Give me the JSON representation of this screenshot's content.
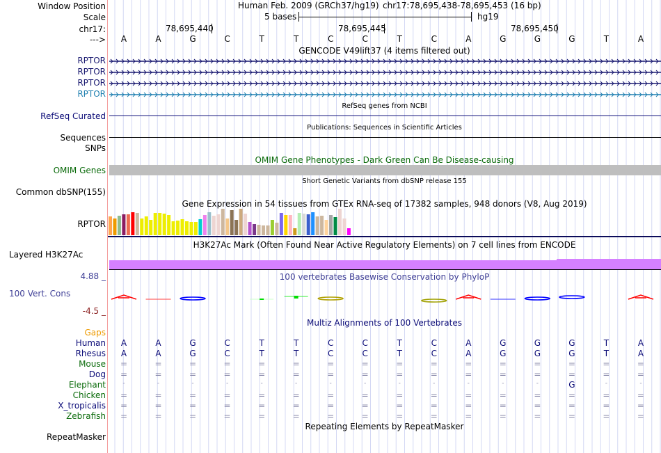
{
  "header": {
    "window_position_label": "Window Position",
    "scale_label": "Scale",
    "chrom_label": "chr17:",
    "strand_label": "--->",
    "assembly_title": "Human Feb. 2009 (GRCh37/hg19)",
    "position": "chr17:78,695,438-78,695,453 (16 bp)",
    "scale_text": "5 bases",
    "scale_db": "hg19",
    "ruler_ticks": [
      "78,695,440",
      "78,695,445",
      "78,695,450"
    ]
  },
  "sequence": [
    "A",
    "A",
    "G",
    "C",
    "T",
    "T",
    "C",
    "C",
    "T",
    "C",
    "A",
    "G",
    "G",
    "G",
    "T",
    "A"
  ],
  "tracks": {
    "gencode": {
      "title": "GENCODE V49lift37 (4 items filtered out)",
      "items": [
        {
          "label": "RPTOR",
          "color": "#191970"
        },
        {
          "label": "RPTOR",
          "color": "#191970"
        },
        {
          "label": "RPTOR",
          "color": "#191970"
        },
        {
          "label": "RPTOR",
          "color": "#1e7fb0"
        }
      ]
    },
    "refseq": {
      "label": "RefSeq Curated",
      "title": "RefSeq genes from NCBI",
      "color": "#0c0c78"
    },
    "publications": {
      "label": "Sequences",
      "title": "Publications: Sequences in Scientific Articles"
    },
    "snps": {
      "label": "SNPs"
    },
    "omim": {
      "label": "OMIM Genes",
      "title": "OMIM Gene Phenotypes - Dark Green Can Be Disease-causing",
      "color": "#0b6b0b",
      "bar_color": "#bebebe"
    },
    "dbsnp": {
      "label": "Common dbSNP(155)",
      "title": "Short Genetic Variants from dbSNP release 155"
    },
    "gtex": {
      "label": "RPTOR",
      "title": "Gene Expression in 54 tissues from GTEx RNA-seq of 17382 samples, 948 donors (V8, Aug 2019)",
      "bars": [
        {
          "color": "#FFA54F",
          "value": 0.7
        },
        {
          "color": "#EE9A00",
          "value": 0.64
        },
        {
          "color": "#8FBC8F",
          "value": 0.73
        },
        {
          "color": "#8B1C62",
          "value": 0.79
        },
        {
          "color": "#EE6A50",
          "value": 0.79
        },
        {
          "color": "#FF0000",
          "value": 0.88
        },
        {
          "color": "#CDB79E",
          "value": 0.83
        },
        {
          "color": "#EEEE00",
          "value": 0.62
        },
        {
          "color": "#EEEE00",
          "value": 0.7
        },
        {
          "color": "#EEEE00",
          "value": 0.58
        },
        {
          "color": "#EEEE00",
          "value": 0.83
        },
        {
          "color": "#EEEE00",
          "value": 0.85
        },
        {
          "color": "#EEEE00",
          "value": 0.81
        },
        {
          "color": "#EEEE00",
          "value": 0.77
        },
        {
          "color": "#EEEE00",
          "value": 0.52
        },
        {
          "color": "#EEEE00",
          "value": 0.56
        },
        {
          "color": "#EEEE00",
          "value": 0.6
        },
        {
          "color": "#EEEE00",
          "value": 0.52
        },
        {
          "color": "#EEEE00",
          "value": 0.5
        },
        {
          "color": "#EEEE00",
          "value": 0.5
        },
        {
          "color": "#00CED1",
          "value": 0.61
        },
        {
          "color": "#EE82EE",
          "value": 0.77
        },
        {
          "color": "#9AC0CD",
          "value": 0.87
        },
        {
          "color": "#EED5D2",
          "value": 0.73
        },
        {
          "color": "#EED5D2",
          "value": 0.78
        },
        {
          "color": "#CDB79E",
          "value": 1.0
        },
        {
          "color": "#F4C78A",
          "value": 0.64
        },
        {
          "color": "#8B7355",
          "value": 0.96
        },
        {
          "color": "#8B7355",
          "value": 0.58
        },
        {
          "color": "#CDAA7D",
          "value": 1.0
        },
        {
          "color": "#EED5D2",
          "value": 0.82
        },
        {
          "color": "#B452CD",
          "value": 0.49
        },
        {
          "color": "#7A378B",
          "value": 0.42
        },
        {
          "color": "#CDB79E",
          "value": 0.39
        },
        {
          "color": "#CDB79E",
          "value": 0.37
        },
        {
          "color": "#CDB79E",
          "value": 0.37
        },
        {
          "color": "#9ACD32",
          "value": 0.59
        },
        {
          "color": "#CDB79E",
          "value": 0.48
        },
        {
          "color": "#7B68EE",
          "value": 0.83
        },
        {
          "color": "#FFD700",
          "value": 0.76
        },
        {
          "color": "#FFB6C1",
          "value": 0.76
        },
        {
          "color": "#CD9B1D",
          "value": 0.27
        },
        {
          "color": "#B4EEB4",
          "value": 0.83
        },
        {
          "color": "#D9D9D9",
          "value": 0.82
        },
        {
          "color": "#3A5FCD",
          "value": 0.78
        },
        {
          "color": "#1E90FF",
          "value": 0.87
        },
        {
          "color": "#CDB79E",
          "value": 0.71
        },
        {
          "color": "#CDB79E",
          "value": 0.73
        },
        {
          "color": "#FFD39B",
          "value": 0.57
        },
        {
          "color": "#A6A6A6",
          "value": 0.75
        },
        {
          "color": "#008B45",
          "value": 0.68
        },
        {
          "color": "#EED5D2",
          "value": 1.0
        },
        {
          "color": "#EED5D2",
          "value": 0.62
        },
        {
          "color": "#FF00FF",
          "value": 0.27
        }
      ]
    },
    "h3k27ac": {
      "label": "Layered H3K27Ac",
      "title": "H3K27Ac Mark (Often Found Near Active Regulatory Elements) on 7 cell lines from ENCODE",
      "color": "#d580ff"
    },
    "phylop": {
      "label": "100 Vert. Cons",
      "title": "100 vertebrates Basewise Conservation by PhyloP",
      "max_label": "4.88 _",
      "min_label": "-4.5 _",
      "label_color": "#3f3f96",
      "max_color": "#3f3f96",
      "min_color": "#8b2020"
    },
    "multiz": {
      "title": "Multiz Alignments of 100 Vertebrates",
      "gaps_label": "Gaps",
      "species": [
        {
          "name": "Human",
          "color": "#0c0c78",
          "row": [
            "A",
            "A",
            "G",
            "C",
            "T",
            "T",
            "C",
            "C",
            "T",
            "C",
            "A",
            "G",
            "G",
            "G",
            "T",
            "A"
          ]
        },
        {
          "name": "Rhesus",
          "color": "#0c0c78",
          "row": [
            "A",
            "A",
            "G",
            "C",
            "T",
            "T",
            "C",
            "C",
            "T",
            "C",
            "A",
            "G",
            "G",
            "G",
            "T",
            "A"
          ]
        },
        {
          "name": "Mouse",
          "color": "#0b6b0b",
          "row": [
            "=",
            "=",
            "=",
            "=",
            "=",
            "=",
            "=",
            "=",
            "=",
            "=",
            "=",
            "=",
            "=",
            "=",
            "=",
            "="
          ]
        },
        {
          "name": "Dog",
          "color": "#0c0c78",
          "row": [
            "=",
            "=",
            "=",
            "=",
            "=",
            "=",
            "=",
            "=",
            "=",
            "=",
            "=",
            "=",
            "=",
            "=",
            "=",
            "="
          ]
        },
        {
          "name": "Elephant",
          "color": "#0b6b0b",
          "row": [
            "-",
            "-",
            "-",
            "-",
            "-",
            "-",
            "-",
            "-",
            "-",
            "-",
            "-",
            "-",
            "-",
            "G",
            "-",
            "-"
          ]
        },
        {
          "name": "Chicken",
          "color": "#0b6b0b",
          "row": [
            "=",
            "=",
            "=",
            "=",
            "=",
            "=",
            "=",
            "=",
            "=",
            "=",
            "=",
            "=",
            "=",
            "=",
            "=",
            "="
          ]
        },
        {
          "name": "X_tropicalis",
          "color": "#0c0c78",
          "row": [
            "=",
            "=",
            "=",
            "=",
            "=",
            "=",
            "=",
            "=",
            "=",
            "=",
            "=",
            "=",
            "=",
            "=",
            "=",
            "="
          ]
        },
        {
          "name": "Zebrafish",
          "color": "#0b6b0b",
          "row": [
            "=",
            "=",
            "=",
            "=",
            "=",
            "=",
            "=",
            "=",
            "=",
            "=",
            "=",
            "=",
            "=",
            "=",
            "=",
            "="
          ]
        }
      ]
    },
    "repeatmasker": {
      "label": "RepeatMasker",
      "title": "Repeating Elements by RepeatMasker"
    }
  }
}
